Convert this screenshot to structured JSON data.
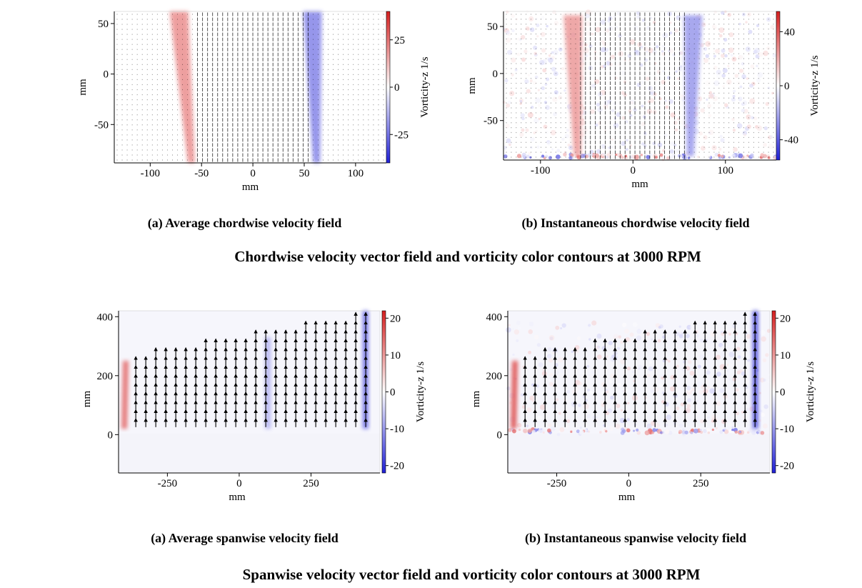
{
  "figure_title_top": "Chordwise velocity vector field and vorticity color contours at 3000 RPM",
  "figure_title_bottom": "Spanwise velocity vector field and vorticity color contours at 3000 RPM",
  "colorscale": {
    "negative": "#1f1fd6",
    "zero": "#ffffff",
    "positive": "#d61f1f",
    "vector_color": "#000000",
    "axis_color": "#000000"
  },
  "chart_data": [
    {
      "type": "heatmap",
      "caption": "(a) Average chordwise velocity field",
      "xlabel": "mm",
      "ylabel": "mm",
      "xlim": [
        -135,
        130
      ],
      "ylim": [
        -88,
        62
      ],
      "xticks": [
        -100,
        -50,
        0,
        50,
        100
      ],
      "yticks": [
        -50,
        0,
        50
      ],
      "grid": false,
      "colorbar": {
        "label": "Vorticity-z 1/s",
        "range": [
          -40,
          40
        ],
        "ticks": [
          -25,
          0,
          25
        ]
      },
      "vectors": "dense small upward arrows, longest between x = -55 and x = 55 mm",
      "vortex_bands": [
        {
          "x_top": -72,
          "x_bottom": -60,
          "y_from": -88,
          "y_to": 62,
          "vorticity": 20,
          "sign": "positive"
        },
        {
          "x_top": 58,
          "x_bottom": 62,
          "y_from": -88,
          "y_to": 62,
          "vorticity": -22,
          "sign": "negative"
        }
      ]
    },
    {
      "type": "heatmap",
      "caption": "(b) Instantaneous chordwise velocity field",
      "xlabel": "mm",
      "ylabel": "mm",
      "xlim": [
        -140,
        155
      ],
      "ylim": [
        -92,
        66
      ],
      "xticks": [
        -100,
        0,
        100
      ],
      "yticks": [
        -50,
        0,
        50
      ],
      "grid": false,
      "colorbar": {
        "label": "Vorticity-z 1/s",
        "range": [
          -55,
          55
        ],
        "ticks": [
          -40,
          0,
          40
        ]
      },
      "vectors": "dense small upward arrows between x = -60 and x = 60 mm",
      "vortex_bands": [
        {
          "x_top": -65,
          "x_bottom": -60,
          "y_from": -88,
          "y_to": 62,
          "vorticity": 25,
          "sign": "positive"
        },
        {
          "x_top": 65,
          "x_bottom": 62,
          "y_from": -88,
          "y_to": 62,
          "vorticity": -25,
          "sign": "negative"
        }
      ]
    },
    {
      "type": "heatmap",
      "caption": "(a) Average spanwise velocity field",
      "xlabel": "mm",
      "ylabel": "mm",
      "xlim": [
        -420,
        490
      ],
      "ylim": [
        -130,
        420
      ],
      "xticks": [
        -250,
        0,
        250
      ],
      "yticks": [
        0,
        200,
        400
      ],
      "grid": false,
      "colorbar": {
        "label": "Vorticity-z 1/s",
        "range": [
          -22,
          22
        ],
        "ticks": [
          -20,
          -10,
          0,
          10,
          20
        ]
      },
      "vectors": "upward arrows, field top rising from about 270 mm at x = -360 to about 400 mm at x = 440",
      "vortex_bands": [
        {
          "x_top": -395,
          "x_bottom": -400,
          "y_from": 20,
          "y_to": 250,
          "vorticity": 15,
          "sign": "positive"
        },
        {
          "x_top": 100,
          "x_bottom": 100,
          "y_from": 20,
          "y_to": 330,
          "vorticity": -8,
          "sign": "negative"
        },
        {
          "x_top": 440,
          "x_bottom": 440,
          "y_from": 20,
          "y_to": 420,
          "vorticity": -15,
          "sign": "negative"
        }
      ]
    },
    {
      "type": "heatmap",
      "caption": "(b) Instantaneous spanwise velocity field",
      "xlabel": "mm",
      "ylabel": "mm",
      "xlim": [
        -420,
        490
      ],
      "ylim": [
        -130,
        420
      ],
      "xticks": [
        -250,
        0,
        250
      ],
      "yticks": [
        0,
        200,
        400
      ],
      "grid": false,
      "colorbar": {
        "label": "Vorticity-z 1/s",
        "range": [
          -22,
          22
        ],
        "ticks": [
          -20,
          -10,
          0,
          10,
          20
        ]
      },
      "vectors": "upward arrows, field top rising from about 270 mm at x = -360 to about 400 mm at x = 440",
      "vortex_bands": [
        {
          "x_top": -395,
          "x_bottom": -400,
          "y_from": 20,
          "y_to": 250,
          "vorticity": 18,
          "sign": "positive"
        },
        {
          "x_top": 440,
          "x_bottom": 440,
          "y_from": 20,
          "y_to": 420,
          "vorticity": -18,
          "sign": "negative"
        }
      ]
    }
  ]
}
